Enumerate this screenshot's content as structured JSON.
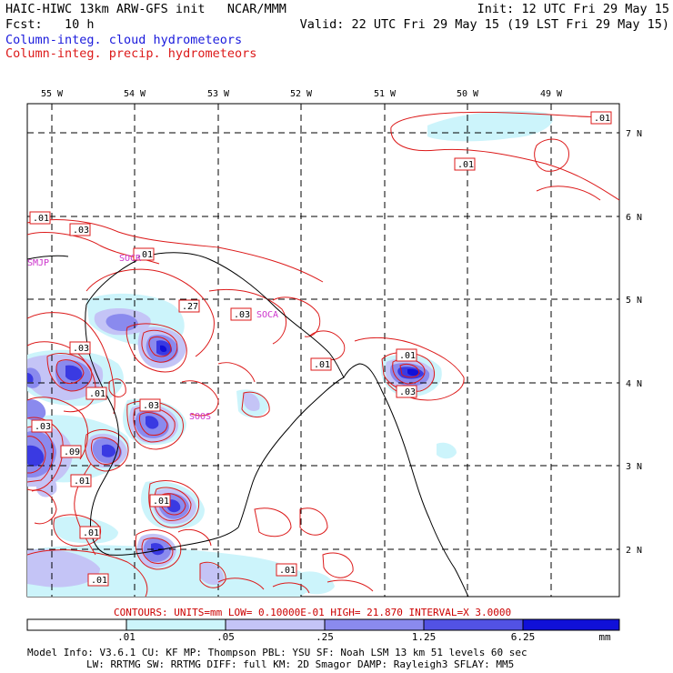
{
  "header": {
    "title": "HAIC-HIWC 13km ARW-GFS init",
    "org": "NCAR/MMM",
    "init": "Init: 12 UTC Fri 29 May 15",
    "fcst_label": "Fcst:",
    "fcst_value": "10 h",
    "valid": "Valid: 22 UTC Fri 29 May 15 (19 LST Fri 29 May 15)"
  },
  "legend": {
    "cloud": "Column-integ. cloud hydrometeors",
    "precip": "Column-integ. precip. hydrometeors",
    "cloud_color": "#1a1adc",
    "precip_color": "#dc1a1a"
  },
  "axes": {
    "lon_labels": [
      "55 W",
      "54 W",
      "53 W",
      "52 W",
      "51 W",
      "50 W",
      "49 W"
    ],
    "lat_labels": [
      "7 N",
      "6 N",
      "5 N",
      "4 N",
      "3 N",
      "2 N"
    ]
  },
  "stations": [
    "SMJP",
    "SOCR",
    "SOCA",
    "SOOS"
  ],
  "contour_labels": [
    ".01",
    ".03",
    ".01",
    ".03",
    ".27",
    ".03",
    ".01",
    ".01",
    ".03",
    ".03",
    ".01",
    ".03",
    ".03",
    ".09",
    ".01",
    ".01",
    ".01",
    ".01",
    ".01",
    ".01"
  ],
  "colorbar": {
    "ticks": [
      ".01",
      ".05",
      ".25",
      "1.25",
      "6.25"
    ],
    "units": "mm",
    "colors": [
      "#ffffff",
      "#ccf4fb",
      "#c4c4f6",
      "#9c9cf0",
      "#6a6ae8",
      "#2f2fe0",
      "#1010d8"
    ]
  },
  "footer": {
    "contours": "CONTOURS:  UNITS=mm  LOW= 0.10000E-01  HIGH=  21.870       INTERVAL=X  3.0000",
    "model_info_1": "Model Info: V3.6.1    CU: KF      MP: Thompson    PBL: YSU      SF: Noah LSM     13 km   51 levels   60 sec",
    "model_info_2": "LW: RRTMG   SW: RRTMG   DIFF: full    KM: 2D Smagor DAMP: Rayleigh3  SFLAY: MM5"
  }
}
